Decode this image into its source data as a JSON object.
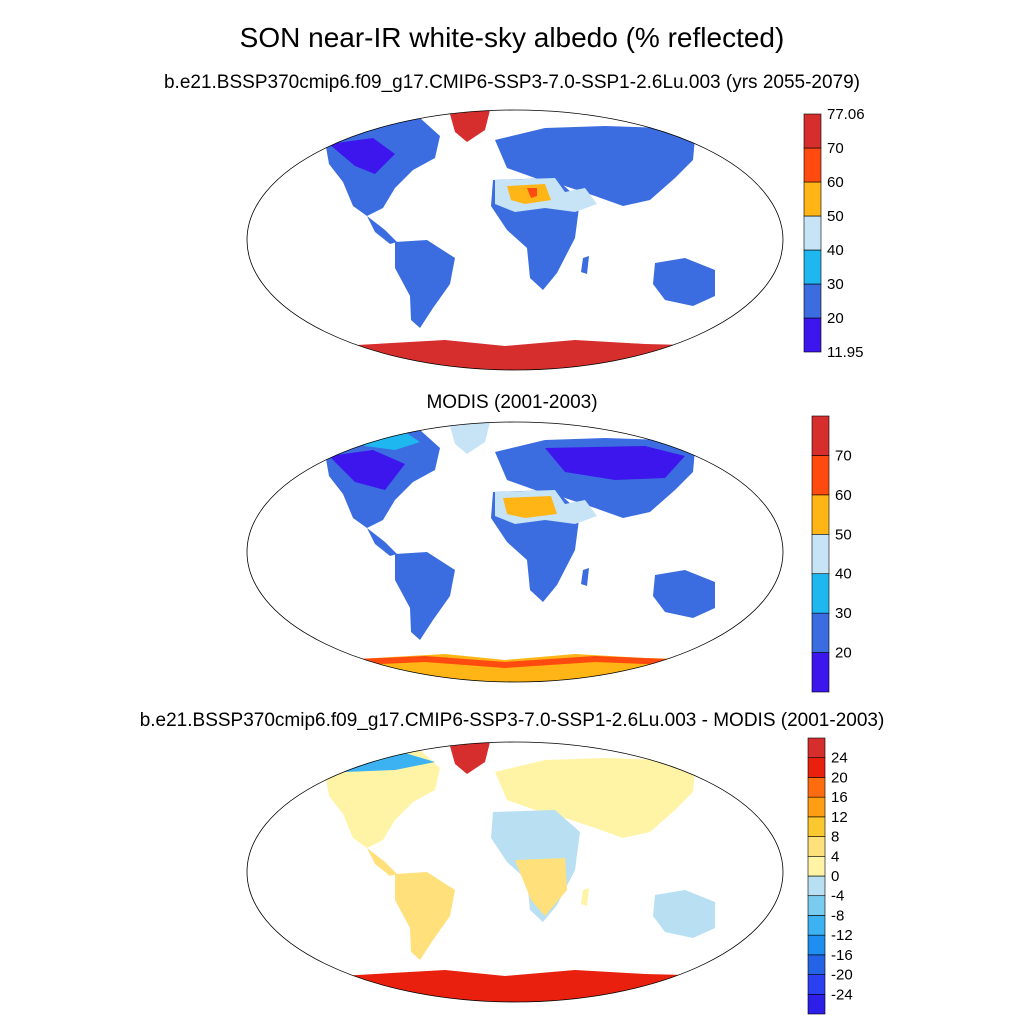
{
  "title": "SON near-IR white-sky albedo (% reflected)",
  "panels": [
    {
      "subtitle": "b.e21.BSSP370cmip6.f09_g17.CMIP6-SSP3-7.0-SSP1-2.6Lu.003 (yrs 2055-2079)",
      "colorbar": {
        "levels": [
          11.95,
          20,
          30,
          40,
          50,
          60,
          70,
          77.06
        ],
        "labels": [
          "77.06",
          "70",
          "60",
          "50",
          "40",
          "30",
          "20",
          "11.95"
        ],
        "colors": [
          "#3d16ee",
          "#3b6de0",
          "#1eb7f0",
          "#c6e4f5",
          "#ffb515",
          "#ff4a10",
          "#d62d2d"
        ]
      }
    },
    {
      "subtitle": "MODIS (2001-2003)",
      "colorbar": {
        "levels": [
          11.95,
          20,
          30,
          40,
          50,
          60,
          70,
          77.06
        ],
        "labels": [
          "70",
          "60",
          "50",
          "40",
          "30",
          "20"
        ],
        "colors": [
          "#3d16ee",
          "#3b6de0",
          "#1eb7f0",
          "#c6e4f5",
          "#ffb515",
          "#ff4a10",
          "#d62d2d"
        ]
      }
    },
    {
      "subtitle": "b.e21.BSSP370cmip6.f09_g17.CMIP6-SSP3-7.0-SSP1-2.6Lu.003 - MODIS (2001-2003)",
      "colorbar": {
        "levels": [
          -28,
          -24,
          -20,
          -16,
          -12,
          -8,
          -4,
          0,
          4,
          8,
          12,
          16,
          20,
          24,
          28
        ],
        "labels": [
          "24",
          "20",
          "16",
          "12",
          "8",
          "4",
          "0",
          "-4",
          "-8",
          "-12",
          "-16",
          "-20",
          "-24"
        ],
        "colors": [
          "#2d1ee8",
          "#2b40f0",
          "#2563e6",
          "#1e8ef0",
          "#3cb2f2",
          "#79ccef",
          "#b8dff2",
          "#fff4a6",
          "#ffe07a",
          "#fbc830",
          "#ff9e12",
          "#ff6c0e",
          "#e8200d",
          "#d62d2d"
        ]
      }
    }
  ]
}
